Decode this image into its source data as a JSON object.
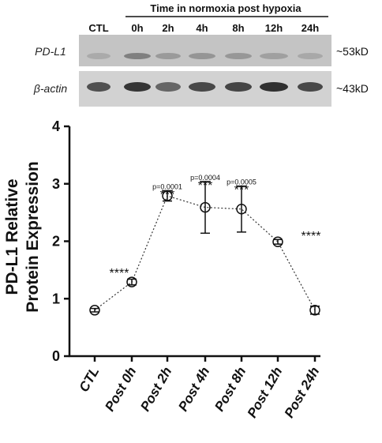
{
  "blot": {
    "header": "Time in normoxia post hypoxia",
    "lanes": [
      "CTL",
      "0h",
      "2h",
      "4h",
      "8h",
      "12h",
      "24h"
    ],
    "rows": [
      {
        "label": "PD-L1",
        "size": "~53kD",
        "background": "#c4c4c4",
        "band_intensity": [
          0.18,
          0.45,
          0.28,
          0.32,
          0.3,
          0.25,
          0.2
        ]
      },
      {
        "label": "β-actin",
        "size": "~43kD",
        "background": "#d2d2d2",
        "band_intensity": [
          0.75,
          0.92,
          0.62,
          0.8,
          0.82,
          0.95,
          0.8
        ]
      }
    ]
  },
  "chart_data": {
    "type": "line",
    "ylabel": [
      "PD-L1 Relative",
      "Protein Expression"
    ],
    "xlabel": "",
    "ylim": [
      0,
      4
    ],
    "yticks": [
      "0",
      "1",
      "2",
      "3",
      "4"
    ],
    "categories": [
      "CTL",
      "Post 0h",
      "Post 2h",
      "Post 4h",
      "Post 8h",
      "Post 12h",
      "Post 24h"
    ],
    "values": [
      0.8,
      1.29,
      2.79,
      2.59,
      2.56,
      1.99,
      0.8
    ],
    "error": [
      0.03,
      0.05,
      0.09,
      0.45,
      0.4,
      0.04,
      0.07
    ],
    "significance": [
      "",
      "****",
      "***",
      "***",
      "***",
      "****",
      ""
    ],
    "p_values": [
      "",
      "",
      "p=0.0001",
      "p=0.0004",
      "p=0.0005",
      "",
      ""
    ],
    "line_style": "dotted",
    "marker": "open-circle",
    "grid": false,
    "legend": "none"
  }
}
